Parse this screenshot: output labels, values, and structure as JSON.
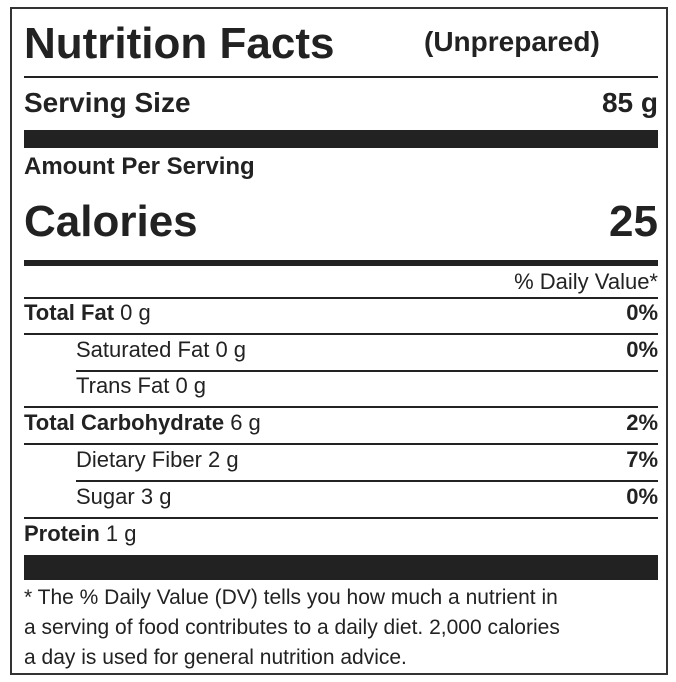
{
  "header": {
    "title": "Nutrition Facts",
    "subtitle": "(Unprepared)"
  },
  "serving": {
    "label": "Serving Size",
    "value": "85 g"
  },
  "amount_per_serving": "Amount Per Serving",
  "calories": {
    "label": "Calories",
    "value": "25"
  },
  "daily_value_header": "% Daily Value*",
  "nutrients": [
    {
      "name": "Total Fat",
      "amount": "0 g",
      "dv": "0%",
      "main": true
    },
    {
      "name": "Saturated Fat",
      "amount": "0 g",
      "dv": "0%",
      "main": false
    },
    {
      "name": "Trans Fat",
      "amount": "0 g",
      "main": false
    },
    {
      "name": "Total Carbohydrate",
      "amount": "6 g",
      "dv": "2%",
      "main": true
    },
    {
      "name": "Dietary Fiber",
      "amount": "2 g",
      "dv": "7%",
      "main": false
    },
    {
      "name": "Sugar",
      "amount": "3 g",
      "dv": "0%",
      "main": false
    },
    {
      "name": "Protein",
      "amount": "1 g",
      "main": true
    }
  ],
  "footnote": [
    "* The % Daily Value (DV) tells you how much a nutrient in",
    "a serving of food contributes to a daily diet. 2,000 calories",
    "a day is used for general nutrition advice."
  ]
}
